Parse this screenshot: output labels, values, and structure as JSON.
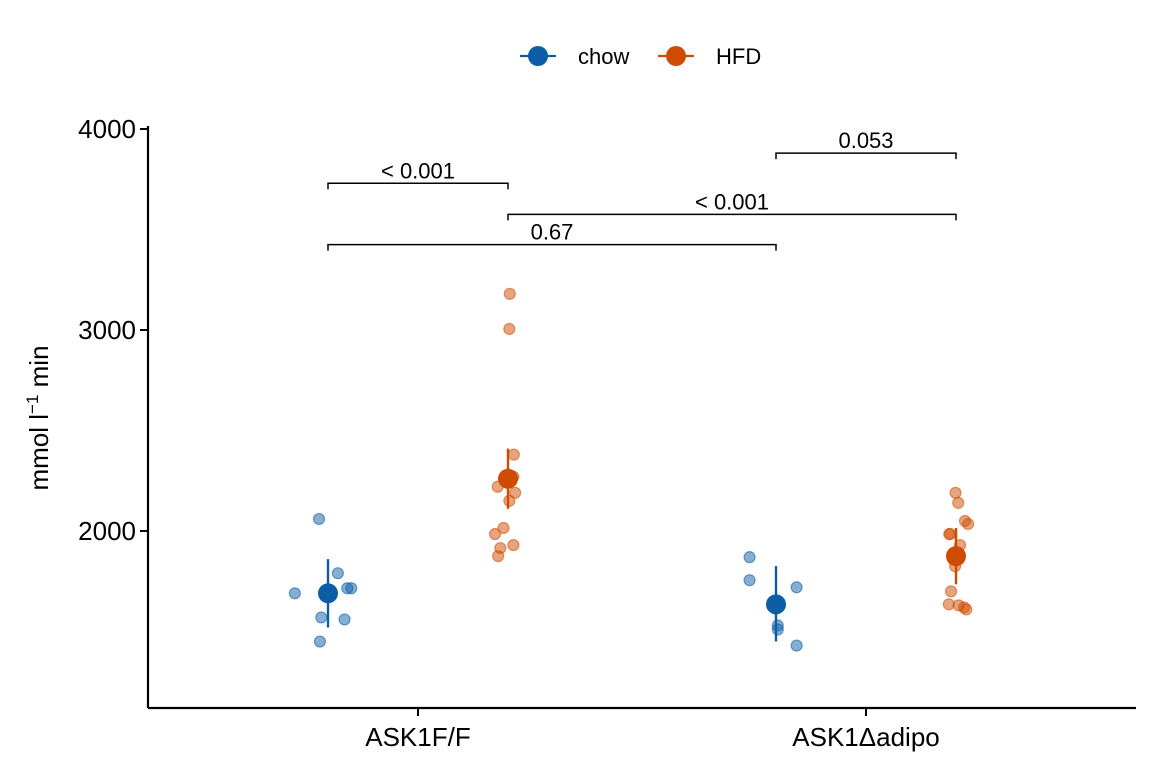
{
  "chart_data": {
    "type": "scatter",
    "title": "",
    "xlabel": "",
    "ylabel": "mmol l",
    "ylabel_superscript": "−1",
    "ylabel_suffix": " min",
    "ylim": [
      1120,
      4000
    ],
    "yticks": [
      2000,
      3000,
      4000
    ],
    "categories": [
      "ASK1F/F",
      "ASK1Δadipo"
    ],
    "legend_position": "top",
    "grid": false,
    "series": [
      {
        "name": "chow",
        "color": "#0C5DA5",
        "points": [
          [
            0,
            -0.148,
            1690
          ],
          [
            0,
            -0.03,
            1570
          ],
          [
            0,
            -0.036,
            1450
          ],
          [
            0,
            -0.04,
            2060
          ],
          [
            0,
            0.044,
            1790
          ],
          [
            0,
            0.086,
            1715
          ],
          [
            0,
            0.104,
            1715
          ],
          [
            0,
            0.074,
            1560
          ],
          [
            1,
            -0.118,
            1870
          ],
          [
            1,
            -0.118,
            1755
          ],
          [
            1,
            0.008,
            1530
          ],
          [
            1,
            0.008,
            1510
          ],
          [
            1,
            0.092,
            1720
          ],
          [
            1,
            0.092,
            1430
          ]
        ],
        "summary": [
          {
            "category": "ASK1F/F",
            "mean": 1690,
            "low": 1520,
            "high": 1860
          },
          {
            "category": "ASK1Δadipo",
            "mean": 1635,
            "low": 1450,
            "high": 1825
          }
        ]
      },
      {
        "name": "HFD",
        "color": "#CF4B00",
        "points": [
          [
            0,
            -0.046,
            2220
          ],
          [
            0,
            -0.002,
            2260
          ],
          [
            0,
            0.006,
            3005
          ],
          [
            0,
            0.008,
            3180
          ],
          [
            0,
            0.026,
            2380
          ],
          [
            0,
            0.024,
            2270
          ],
          [
            0,
            0.032,
            2190
          ],
          [
            0,
            0.006,
            2150
          ],
          [
            0,
            -0.02,
            2015
          ],
          [
            0,
            -0.058,
            1985
          ],
          [
            0,
            -0.034,
            1915
          ],
          [
            0,
            -0.044,
            1875
          ],
          [
            0,
            0.024,
            1930
          ],
          [
            1,
            -0.03,
            1985
          ],
          [
            1,
            -0.026,
            1985
          ],
          [
            1,
            0.01,
            2140
          ],
          [
            1,
            -0.002,
            2190
          ],
          [
            1,
            0.04,
            2050
          ],
          [
            1,
            0.054,
            2035
          ],
          [
            1,
            0.018,
            1930
          ],
          [
            1,
            -0.004,
            1825
          ],
          [
            1,
            -0.022,
            1700
          ],
          [
            1,
            -0.032,
            1635
          ],
          [
            1,
            0.012,
            1630
          ],
          [
            1,
            0.036,
            1620
          ],
          [
            1,
            0.046,
            1610
          ]
        ],
        "summary": [
          {
            "category": "ASK1F/F",
            "mean": 2260,
            "low": 2110,
            "high": 2410
          },
          {
            "category": "ASK1Δadipo",
            "mean": 1875,
            "low": 1735,
            "high": 2015
          }
        ]
      }
    ],
    "comparisons": [
      {
        "from": "ASK1F/F chow",
        "to": "ASK1F/F HFD",
        "y": 3730,
        "label": "< 0.001"
      },
      {
        "from": "ASK1Δadipo chow",
        "to": "ASK1Δadipo HFD",
        "y": 3880,
        "label": "0.053"
      },
      {
        "from": "ASK1F/F HFD",
        "to": "ASK1Δadipo HFD",
        "y": 3575,
        "label": "< 0.001"
      },
      {
        "from": "ASK1F/F chow",
        "to": "ASK1Δadipo chow",
        "y": 3425,
        "label": "0.67"
      }
    ]
  }
}
